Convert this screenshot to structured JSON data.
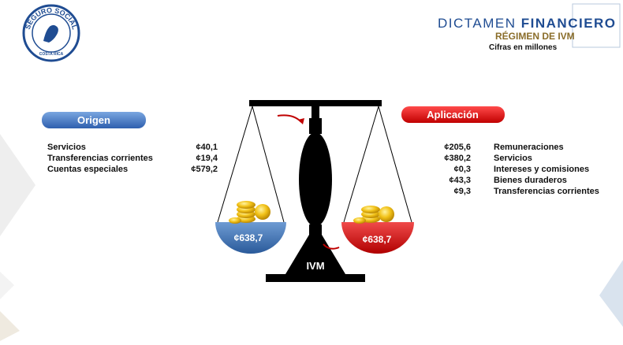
{
  "logo": {
    "top_text": "SEGURO SOCIAL",
    "bottom_text": "COSTA RICA"
  },
  "header": {
    "title_light": "DICTAMEN",
    "title_bold": "FINANCIERO",
    "subtitle": "RÉGIMEN DE IVM",
    "note": "Cifras en millones"
  },
  "origen": {
    "label": "Origen",
    "total": "¢638,7",
    "items": [
      {
        "name": "Servicios",
        "amount": "¢40,1"
      },
      {
        "name": "Transferencias corrientes",
        "amount": "¢19,4"
      },
      {
        "name": "Cuentas especiales",
        "amount": "¢579,2"
      }
    ]
  },
  "aplicacion": {
    "label": "Aplicación",
    "total": "¢638,7",
    "items": [
      {
        "name": "Remuneraciones",
        "amount": "¢205,6"
      },
      {
        "name": "Servicios",
        "amount": "¢380,2"
      },
      {
        "name": "Intereses y comisiones",
        "amount": "¢0,3"
      },
      {
        "name": "Bienes duraderos",
        "amount": "¢43,3"
      },
      {
        "name": "Transferencias corrientes",
        "amount": "¢9,3"
      }
    ]
  },
  "scale_label": "IVM"
}
